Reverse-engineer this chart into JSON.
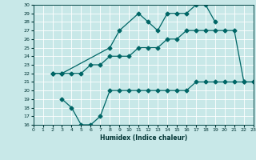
{
  "title": "",
  "xlabel": "Humidex (Indice chaleur)",
  "bg_color": "#c8e8e8",
  "grid_color": "#ffffff",
  "line_color": "#006666",
  "ylim": [
    16,
    30
  ],
  "xlim": [
    0,
    23
  ],
  "x_top": [
    2,
    3,
    8,
    9,
    11,
    12,
    13,
    14,
    15,
    16,
    17,
    18,
    19
  ],
  "y_top": [
    22,
    22,
    25,
    27,
    29,
    28,
    27,
    29,
    29,
    29,
    30,
    30,
    28
  ],
  "x_mid": [
    2,
    3,
    4,
    5,
    6,
    7,
    8,
    9,
    10,
    11,
    12,
    13,
    14,
    15,
    16,
    17,
    18,
    19,
    20,
    21,
    22,
    23
  ],
  "y_mid": [
    22,
    22,
    22,
    22,
    23,
    23,
    24,
    24,
    24,
    25,
    25,
    25,
    26,
    26,
    27,
    27,
    27,
    27,
    27,
    27,
    21,
    21
  ],
  "x_bot": [
    3,
    4,
    5,
    6,
    7,
    8,
    9,
    10,
    11,
    12,
    13,
    14,
    15,
    16,
    17,
    18,
    19,
    20,
    21,
    22,
    23
  ],
  "y_bot": [
    19,
    18,
    16,
    16,
    17,
    20,
    20,
    20,
    20,
    20,
    20,
    20,
    20,
    20,
    21,
    21,
    21,
    21,
    21,
    21,
    21
  ]
}
